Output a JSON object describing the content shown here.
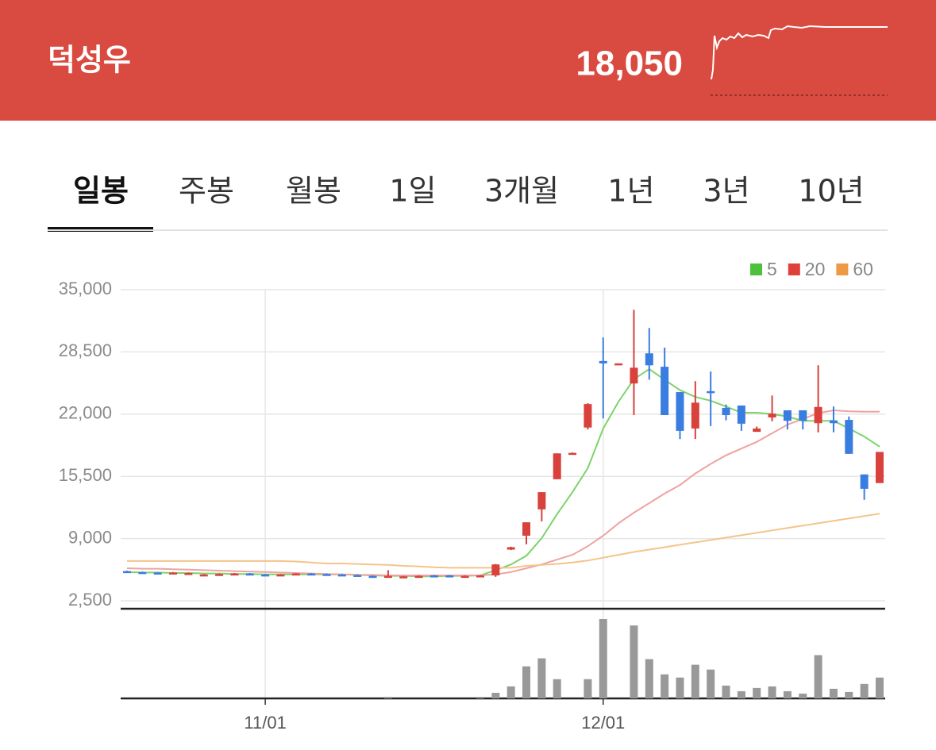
{
  "header": {
    "name": "덕성우",
    "price": "18,050"
  },
  "tabs": {
    "items": [
      "일봉",
      "주봉",
      "월봉",
      "1일",
      "3개월",
      "1년",
      "3년",
      "10년"
    ],
    "active": 0
  },
  "chart_data": {
    "type": "candlestick",
    "categories": [
      null,
      null,
      null,
      null,
      null,
      null,
      null,
      null,
      null,
      "11/01",
      null,
      null,
      null,
      null,
      null,
      null,
      null,
      null,
      null,
      null,
      null,
      null,
      null,
      null,
      null,
      null,
      null,
      null,
      null,
      null,
      null,
      "12/01",
      null,
      null,
      null,
      null,
      null,
      null,
      null,
      null,
      null,
      null,
      null,
      null,
      null,
      null,
      null,
      null,
      null,
      null
    ],
    "open": [
      5600,
      5500,
      5450,
      5350,
      5350,
      5200,
      5250,
      5300,
      5350,
      5250,
      5150,
      5250,
      5350,
      5300,
      5250,
      5200,
      5100,
      5000,
      5000,
      5000,
      5150,
      5150,
      5050,
      5150,
      5150,
      7850,
      9300,
      12050,
      15200,
      17900,
      20600,
      27550,
      27250,
      25200,
      28350,
      26950,
      24300,
      20500,
      24400,
      22650,
      22900,
      20150,
      21650,
      22400,
      22400,
      21050,
      21350,
      21400,
      15700,
      14800
    ],
    "high": [
      5650,
      5550,
      5500,
      5500,
      5450,
      5300,
      5350,
      5400,
      5400,
      5300,
      5300,
      5400,
      5400,
      5350,
      5300,
      5250,
      5150,
      5700,
      5100,
      5150,
      5200,
      5200,
      5150,
      5200,
      6350,
      8150,
      10700,
      13850,
      17900,
      18000,
      23150,
      30000,
      27300,
      32900,
      31000,
      28950,
      24300,
      25450,
      26450,
      23000,
      22900,
      20700,
      23950,
      22400,
      22400,
      27100,
      22800,
      21750,
      15700,
      18050
    ],
    "low": [
      5450,
      5350,
      5350,
      5350,
      5300,
      5150,
      5200,
      5250,
      5200,
      5100,
      5100,
      5200,
      5200,
      5150,
      5150,
      5050,
      5000,
      4950,
      4950,
      4950,
      5050,
      5050,
      5000,
      5100,
      5000,
      7800,
      8400,
      10800,
      15200,
      17850,
      20400,
      21550,
      27250,
      21900,
      25600,
      21900,
      19400,
      19400,
      20750,
      21350,
      20250,
      20150,
      21250,
      20400,
      20400,
      20100,
      20100,
      17850,
      13050,
      14800
    ],
    "close": [
      5500,
      5400,
      5400,
      5450,
      5400,
      5250,
      5300,
      5350,
      5250,
      5150,
      5250,
      5350,
      5250,
      5200,
      5200,
      5100,
      5050,
      5100,
      5050,
      5100,
      5100,
      5100,
      5100,
      5150,
      6300,
      8100,
      10700,
      13850,
      17900,
      17950,
      23050,
      27300,
      27300,
      26850,
      27100,
      21900,
      20250,
      23200,
      24250,
      21900,
      21000,
      20500,
      22050,
      21300,
      21300,
      22750,
      21050,
      17850,
      14200,
      18050
    ],
    "up_color": "#d9413c",
    "down_color": "#3a7de0",
    "series": [
      {
        "name": "5",
        "color": "#7dd36a",
        "values": [
          5500,
          5450,
          5450,
          5400,
          5400,
          5350,
          5350,
          5300,
          5300,
          5250,
          5250,
          5250,
          5250,
          5250,
          5250,
          5200,
          5150,
          5100,
          5100,
          5050,
          5050,
          5100,
          5100,
          5150,
          5700,
          6300,
          7200,
          9050,
          11550,
          13850,
          16350,
          20500,
          23300,
          25650,
          26700,
          25600,
          24500,
          23800,
          23400,
          22800,
          22150,
          22150,
          22000,
          21750,
          21300,
          21300,
          21300,
          20500,
          19650,
          18600
        ]
      },
      {
        "name": "20",
        "color": "#f0a2a2",
        "values": [
          5900,
          5850,
          5850,
          5800,
          5750,
          5700,
          5650,
          5600,
          5550,
          5500,
          5450,
          5400,
          5350,
          5300,
          5250,
          5200,
          5200,
          5150,
          5150,
          5150,
          5150,
          5150,
          5150,
          5150,
          5250,
          5500,
          5900,
          6300,
          6800,
          7300,
          8200,
          9300,
          10600,
          11700,
          12700,
          13700,
          14600,
          15800,
          16800,
          17700,
          18400,
          19100,
          20000,
          20900,
          21500,
          22100,
          22400,
          22300,
          22250,
          22250
        ]
      },
      {
        "name": "60",
        "color": "#f5c48a",
        "values": [
          6650,
          6650,
          6650,
          6650,
          6650,
          6650,
          6650,
          6650,
          6650,
          6650,
          6650,
          6600,
          6500,
          6400,
          6400,
          6350,
          6300,
          6250,
          6150,
          6100,
          6000,
          5950,
          5950,
          5950,
          5950,
          5950,
          6150,
          6250,
          6350,
          6500,
          6700,
          7000,
          7300,
          7600,
          7850,
          8100,
          8350,
          8600,
          8850,
          9100,
          9350,
          9600,
          9850,
          10100,
          10350,
          10600,
          10850,
          11100,
          11350,
          11600
        ]
      }
    ],
    "legend_colors": [
      "#4cc23a",
      "#e0403a",
      "#ee9a45"
    ],
    "volume": [
      0,
      0,
      0,
      0,
      0,
      0,
      0,
      0,
      0,
      0,
      0,
      0,
      0,
      0,
      0,
      0,
      0,
      2,
      0,
      0,
      0,
      0,
      0,
      2,
      7,
      15,
      40,
      50,
      24,
      0,
      24,
      99,
      0,
      91,
      49,
      30,
      26,
      42,
      36,
      16,
      9,
      13,
      15,
      9,
      6,
      54,
      12,
      8,
      18,
      26
    ],
    "volume_color": "#999999",
    "ylim": [
      2500,
      35000
    ],
    "yticks": [
      {
        "value": 2500,
        "label": "2,500"
      },
      {
        "value": 9000,
        "label": "9,000"
      },
      {
        "value": 15500,
        "label": "15,500"
      },
      {
        "value": 22000,
        "label": "22,000"
      },
      {
        "value": 28500,
        "label": "28,500"
      },
      {
        "value": 35000,
        "label": "35,000"
      }
    ],
    "grid": true
  }
}
